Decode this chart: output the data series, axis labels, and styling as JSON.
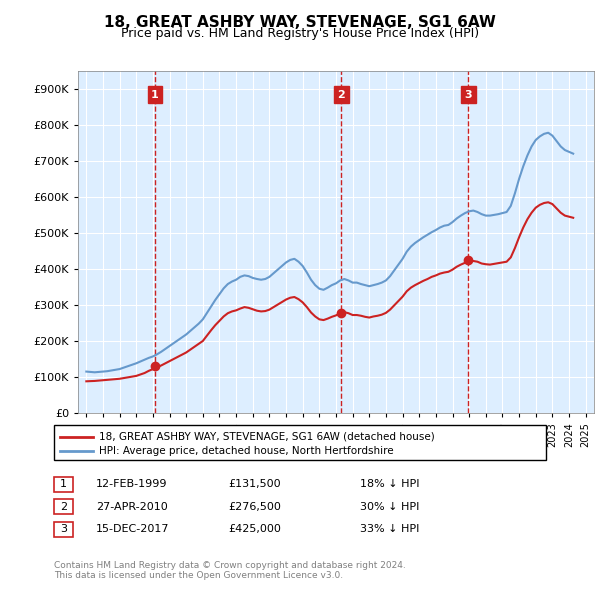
{
  "title": "18, GREAT ASHBY WAY, STEVENAGE, SG1 6AW",
  "subtitle": "Price paid vs. HM Land Registry's House Price Index (HPI)",
  "hpi_color": "#6699cc",
  "price_color": "#cc2222",
  "dashed_vline_color": "#cc2222",
  "background_color": "#ddeeff",
  "ylim": [
    0,
    950000
  ],
  "yticks": [
    0,
    100000,
    200000,
    300000,
    400000,
    500000,
    600000,
    700000,
    800000,
    900000
  ],
  "ytick_labels": [
    "£0",
    "£100K",
    "£200K",
    "£300K",
    "£400K",
    "£500K",
    "£600K",
    "£700K",
    "£800K",
    "£900K"
  ],
  "legend_label_red": "18, GREAT ASHBY WAY, STEVENAGE, SG1 6AW (detached house)",
  "legend_label_blue": "HPI: Average price, detached house, North Hertfordshire",
  "transactions": [
    {
      "num": 1,
      "date": "12-FEB-1999",
      "price": "£131,500",
      "pct": "18% ↓ HPI",
      "year": 1999.12
    },
    {
      "num": 2,
      "date": "27-APR-2010",
      "price": "£276,500",
      "pct": "30% ↓ HPI",
      "year": 2010.32
    },
    {
      "num": 3,
      "date": "15-DEC-2017",
      "price": "£425,000",
      "pct": "33% ↓ HPI",
      "year": 2017.96
    }
  ],
  "footnote": "Contains HM Land Registry data © Crown copyright and database right 2024.\nThis data is licensed under the Open Government Licence v3.0.",
  "hpi_data_x": [
    1995.0,
    1995.25,
    1995.5,
    1995.75,
    1996.0,
    1996.25,
    1996.5,
    1996.75,
    1997.0,
    1997.25,
    1997.5,
    1997.75,
    1998.0,
    1998.25,
    1998.5,
    1998.75,
    1999.0,
    1999.25,
    1999.5,
    1999.75,
    2000.0,
    2000.25,
    2000.5,
    2000.75,
    2001.0,
    2001.25,
    2001.5,
    2001.75,
    2002.0,
    2002.25,
    2002.5,
    2002.75,
    2003.0,
    2003.25,
    2003.5,
    2003.75,
    2004.0,
    2004.25,
    2004.5,
    2004.75,
    2005.0,
    2005.25,
    2005.5,
    2005.75,
    2006.0,
    2006.25,
    2006.5,
    2006.75,
    2007.0,
    2007.25,
    2007.5,
    2007.75,
    2008.0,
    2008.25,
    2008.5,
    2008.75,
    2009.0,
    2009.25,
    2009.5,
    2009.75,
    2010.0,
    2010.25,
    2010.5,
    2010.75,
    2011.0,
    2011.25,
    2011.5,
    2011.75,
    2012.0,
    2012.25,
    2012.5,
    2012.75,
    2013.0,
    2013.25,
    2013.5,
    2013.75,
    2014.0,
    2014.25,
    2014.5,
    2014.75,
    2015.0,
    2015.25,
    2015.5,
    2015.75,
    2016.0,
    2016.25,
    2016.5,
    2016.75,
    2017.0,
    2017.25,
    2017.5,
    2017.75,
    2018.0,
    2018.25,
    2018.5,
    2018.75,
    2019.0,
    2019.25,
    2019.5,
    2019.75,
    2020.0,
    2020.25,
    2020.5,
    2020.75,
    2021.0,
    2021.25,
    2021.5,
    2021.75,
    2022.0,
    2022.25,
    2022.5,
    2022.75,
    2023.0,
    2023.25,
    2023.5,
    2023.75,
    2024.0,
    2024.25
  ],
  "hpi_data_y": [
    115000,
    114000,
    113000,
    114000,
    115000,
    116000,
    118000,
    120000,
    122000,
    126000,
    130000,
    134000,
    138000,
    143000,
    148000,
    153000,
    157000,
    163000,
    170000,
    178000,
    186000,
    194000,
    202000,
    210000,
    218000,
    228000,
    238000,
    248000,
    260000,
    278000,
    296000,
    314000,
    330000,
    346000,
    358000,
    365000,
    370000,
    378000,
    382000,
    380000,
    375000,
    372000,
    370000,
    372000,
    378000,
    388000,
    398000,
    408000,
    418000,
    425000,
    428000,
    420000,
    408000,
    390000,
    370000,
    355000,
    345000,
    342000,
    348000,
    355000,
    360000,
    368000,
    372000,
    368000,
    362000,
    362000,
    358000,
    355000,
    352000,
    355000,
    358000,
    362000,
    368000,
    380000,
    396000,
    412000,
    428000,
    448000,
    462000,
    472000,
    480000,
    488000,
    495000,
    502000,
    508000,
    515000,
    520000,
    522000,
    530000,
    540000,
    548000,
    555000,
    560000,
    562000,
    558000,
    552000,
    548000,
    548000,
    550000,
    552000,
    555000,
    558000,
    575000,
    610000,
    650000,
    685000,
    715000,
    740000,
    758000,
    768000,
    775000,
    778000,
    770000,
    755000,
    740000,
    730000,
    725000,
    720000
  ],
  "price_data_x": [
    1995.0,
    1995.25,
    1995.5,
    1995.75,
    1996.0,
    1996.25,
    1996.5,
    1996.75,
    1997.0,
    1997.25,
    1997.5,
    1997.75,
    1998.0,
    1998.25,
    1998.5,
    1998.75,
    1999.0,
    1999.25,
    1999.5,
    1999.75,
    2000.0,
    2000.25,
    2000.5,
    2000.75,
    2001.0,
    2001.25,
    2001.5,
    2001.75,
    2002.0,
    2002.25,
    2002.5,
    2002.75,
    2003.0,
    2003.25,
    2003.5,
    2003.75,
    2004.0,
    2004.25,
    2004.5,
    2004.75,
    2005.0,
    2005.25,
    2005.5,
    2005.75,
    2006.0,
    2006.25,
    2006.5,
    2006.75,
    2007.0,
    2007.25,
    2007.5,
    2007.75,
    2008.0,
    2008.25,
    2008.5,
    2008.75,
    2009.0,
    2009.25,
    2009.5,
    2009.75,
    2010.0,
    2010.25,
    2010.5,
    2010.75,
    2011.0,
    2011.25,
    2011.5,
    2011.75,
    2012.0,
    2012.25,
    2012.5,
    2012.75,
    2013.0,
    2013.25,
    2013.5,
    2013.75,
    2014.0,
    2014.25,
    2014.5,
    2014.75,
    2015.0,
    2015.25,
    2015.5,
    2015.75,
    2016.0,
    2016.25,
    2016.5,
    2016.75,
    2017.0,
    2017.25,
    2017.5,
    2017.75,
    2018.0,
    2018.25,
    2018.5,
    2018.75,
    2019.0,
    2019.25,
    2019.5,
    2019.75,
    2020.0,
    2020.25,
    2020.5,
    2020.75,
    2021.0,
    2021.25,
    2021.5,
    2021.75,
    2022.0,
    2022.25,
    2022.5,
    2022.75,
    2023.0,
    2023.25,
    2023.5,
    2023.75,
    2024.0,
    2024.25
  ],
  "price_data_y": [
    88000,
    88500,
    89000,
    90000,
    91000,
    92000,
    93000,
    94000,
    95000,
    97000,
    99000,
    101000,
    103000,
    107000,
    111000,
    117000,
    122000,
    127000,
    132000,
    138000,
    144000,
    150000,
    156000,
    162000,
    168000,
    176000,
    184000,
    192000,
    200000,
    215000,
    230000,
    244000,
    256000,
    268000,
    277000,
    282000,
    285000,
    290000,
    294000,
    292000,
    288000,
    284000,
    282000,
    283000,
    287000,
    294000,
    301000,
    308000,
    315000,
    320000,
    322000,
    316000,
    307000,
    294000,
    279000,
    268000,
    260000,
    258000,
    262000,
    267000,
    271000,
    277000,
    280000,
    277000,
    272000,
    272000,
    270000,
    267000,
    265000,
    268000,
    270000,
    273000,
    278000,
    287000,
    299000,
    311000,
    323000,
    338000,
    348000,
    355000,
    361000,
    367000,
    372000,
    378000,
    382000,
    387000,
    390000,
    392000,
    398000,
    406000,
    412000,
    417000,
    421000,
    422000,
    420000,
    415000,
    413000,
    412000,
    414000,
    416000,
    418000,
    420000,
    432000,
    458000,
    488000,
    515000,
    538000,
    556000,
    570000,
    578000,
    583000,
    585000,
    580000,
    568000,
    556000,
    548000,
    545000,
    542000
  ],
  "transaction_prices": [
    131500,
    276500,
    425000
  ],
  "transaction_years": [
    1999.12,
    2010.32,
    2017.96
  ],
  "xlim": [
    1994.5,
    2025.5
  ],
  "xticks": [
    1995,
    1996,
    1997,
    1998,
    1999,
    2000,
    2001,
    2002,
    2003,
    2004,
    2005,
    2006,
    2007,
    2008,
    2009,
    2010,
    2011,
    2012,
    2013,
    2014,
    2015,
    2016,
    2017,
    2018,
    2019,
    2020,
    2021,
    2022,
    2023,
    2024,
    2025
  ]
}
